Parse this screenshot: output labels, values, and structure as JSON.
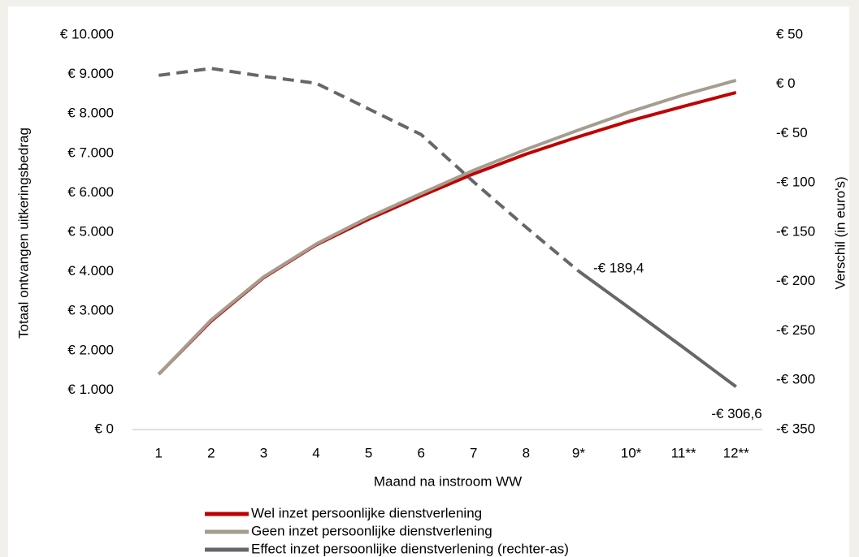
{
  "chart_data": {
    "type": "line",
    "categories": [
      "1",
      "2",
      "3",
      "4",
      "5",
      "6",
      "7",
      "8",
      "9*",
      "10*",
      "11**",
      "12**"
    ],
    "xlabel": "Maand na instroom WW",
    "ylabel": "Totaal  ontvangen uitkeringsbedrag",
    "y2label": "Verschil (in euro's)",
    "ylim": [
      0,
      10000
    ],
    "yticks": [
      {
        "value": 0,
        "label": "€ 0"
      },
      {
        "value": 1000,
        "label": "€ 1.000"
      },
      {
        "value": 2000,
        "label": "€ 2.000"
      },
      {
        "value": 3000,
        "label": "€ 3.000"
      },
      {
        "value": 4000,
        "label": "€ 4.000"
      },
      {
        "value": 5000,
        "label": "€ 5.000"
      },
      {
        "value": 6000,
        "label": "€ 6.000"
      },
      {
        "value": 7000,
        "label": "€ 7.000"
      },
      {
        "value": 8000,
        "label": "€ 8.000"
      },
      {
        "value": 9000,
        "label": "€ 9.000"
      },
      {
        "value": 10000,
        "label": "€ 10.000"
      }
    ],
    "y2lim": [
      -350,
      50
    ],
    "y2ticks": [
      {
        "value": 50,
        "label": "€ 50"
      },
      {
        "value": 0,
        "label": "€ 0"
      },
      {
        "value": -50,
        "label": "-€ 50"
      },
      {
        "value": -100,
        "label": "-€ 100"
      },
      {
        "value": -150,
        "label": "-€ 150"
      },
      {
        "value": -200,
        "label": "-€ 200"
      },
      {
        "value": -250,
        "label": "-€ 250"
      },
      {
        "value": -300,
        "label": "-€ 300"
      },
      {
        "value": -350,
        "label": "-€ 350"
      }
    ],
    "grid": false,
    "legend": "bottom",
    "series": [
      {
        "name": "Wel inzet persoonlijke dienstverlening",
        "color": "#c00000",
        "values": [
          1400,
          2750,
          3850,
          4680,
          5330,
          5920,
          6480,
          6980,
          7420,
          7830,
          8190,
          8540
        ]
      },
      {
        "name": "Geen inzet persoonlijke dienstverlening",
        "color": "#a59d8f",
        "values": [
          1400,
          2780,
          3870,
          4700,
          5380,
          5980,
          6570,
          7100,
          7590,
          8060,
          8480,
          8850
        ]
      },
      {
        "name": "Effect inzet persoonlijke dienstverlening (rechter-as)",
        "color": "#65676a",
        "axis": "y2",
        "dashed_through": "9*",
        "values": [
          9,
          16,
          8,
          1,
          -25,
          -51,
          -99,
          -145,
          -189.4,
          -228,
          -267,
          -306.6
        ],
        "value_labels": [
          null,
          null,
          null,
          null,
          null,
          null,
          null,
          null,
          "-€ 189,4",
          null,
          null,
          "-€ 306,6"
        ]
      }
    ]
  }
}
